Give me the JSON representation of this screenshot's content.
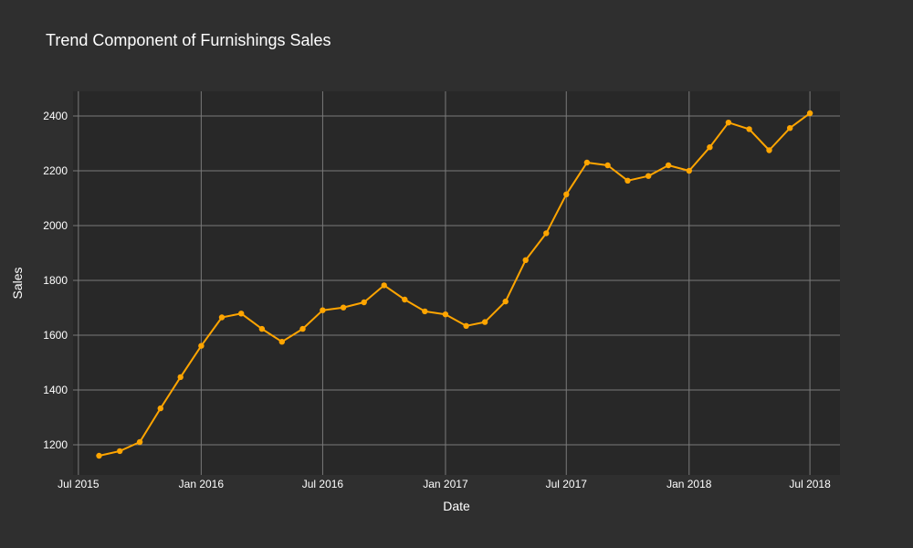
{
  "chart_data": {
    "type": "line",
    "title": "Trend Component of Furnishings Sales",
    "xlabel": "Date",
    "ylabel": "Sales",
    "xlim": [
      "2015-06-23",
      "2018-08-15"
    ],
    "ylim": [
      1090,
      2490
    ],
    "x_ticks": [
      {
        "date": "2015-07-01",
        "label": "Jul 2015"
      },
      {
        "date": "2016-01-01",
        "label": "Jan 2016"
      },
      {
        "date": "2016-07-01",
        "label": "Jul 2016"
      },
      {
        "date": "2017-01-01",
        "label": "Jan 2017"
      },
      {
        "date": "2017-07-01",
        "label": "Jul 2017"
      },
      {
        "date": "2018-01-01",
        "label": "Jan 2018"
      },
      {
        "date": "2018-07-01",
        "label": "Jul 2018"
      }
    ],
    "y_ticks": [
      1200,
      1400,
      1600,
      1800,
      2000,
      2200,
      2400
    ],
    "grid": true,
    "series": [
      {
        "color": "#ffa500",
        "x": [
          "2015-08-01",
          "2015-09-01",
          "2015-10-01",
          "2015-11-01",
          "2015-12-01",
          "2016-01-01",
          "2016-02-01",
          "2016-03-01",
          "2016-04-01",
          "2016-05-01",
          "2016-06-01",
          "2016-07-01",
          "2016-08-01",
          "2016-09-01",
          "2016-10-01",
          "2016-11-01",
          "2016-12-01",
          "2017-01-01",
          "2017-02-01",
          "2017-03-01",
          "2017-04-01",
          "2017-05-01",
          "2017-06-01",
          "2017-07-01",
          "2017-08-01",
          "2017-09-01",
          "2017-10-01",
          "2017-11-01",
          "2017-12-01",
          "2018-01-01",
          "2018-02-01",
          "2018-03-01",
          "2018-04-01",
          "2018-05-01",
          "2018-06-01",
          "2018-07-01"
        ],
        "y": [
          1160,
          1177,
          1210,
          1333,
          1447,
          1561,
          1665,
          1679,
          1623,
          1576,
          1623,
          1691,
          1701,
          1720,
          1782,
          1730,
          1687,
          1676,
          1634,
          1648,
          1723,
          1874,
          1972,
          2114,
          2230,
          2220,
          2164,
          2181,
          2220,
          2200,
          2286,
          2376,
          2352,
          2275,
          2356,
          2410
        ]
      }
    ]
  }
}
